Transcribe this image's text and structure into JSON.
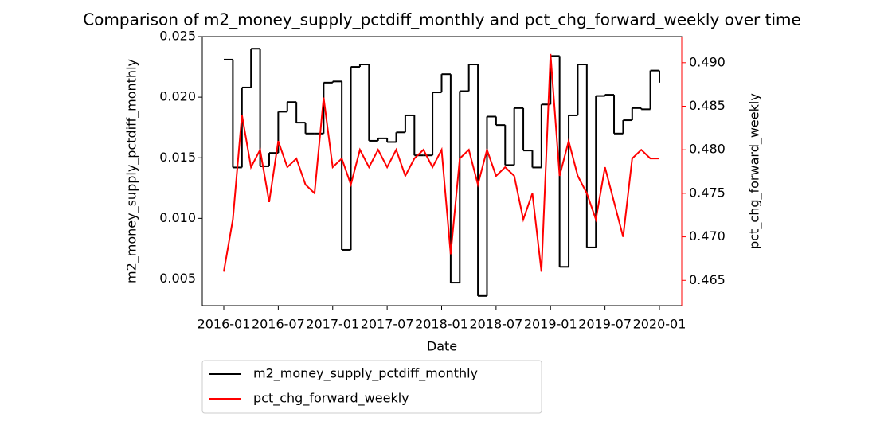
{
  "chart_data": {
    "type": "line",
    "title": "Comparison of m2_money_supply_pctdiff_monthly and pct_chg_forward_weekly over time",
    "x_label": "Date",
    "y_label": "m2_money_supply_pctdiff_monthly",
    "y2_label": "pct_chg_forward_weekly",
    "x": [
      "2016-01",
      "2016-02",
      "2016-03",
      "2016-04",
      "2016-05",
      "2016-06",
      "2016-07",
      "2016-08",
      "2016-09",
      "2016-10",
      "2016-11",
      "2016-12",
      "2017-01",
      "2017-02",
      "2017-03",
      "2017-04",
      "2017-05",
      "2017-06",
      "2017-07",
      "2017-08",
      "2017-09",
      "2017-10",
      "2017-11",
      "2017-12",
      "2018-01",
      "2018-02",
      "2018-03",
      "2018-04",
      "2018-05",
      "2018-06",
      "2018-07",
      "2018-08",
      "2018-09",
      "2018-10",
      "2018-11",
      "2018-12",
      "2019-01",
      "2019-02",
      "2019-03",
      "2019-04",
      "2019-05",
      "2019-06",
      "2019-07",
      "2019-08",
      "2019-09",
      "2019-10",
      "2019-11",
      "2019-12",
      "2020-01"
    ],
    "xticks": [
      "2016-01",
      "2016-07",
      "2017-01",
      "2017-07",
      "2018-01",
      "2018-07",
      "2019-01",
      "2019-07",
      "2020-01"
    ],
    "series": [
      {
        "name": "m2_money_supply_pctdiff_monthly",
        "color": "#000000",
        "step": true,
        "values": [
          0.0231,
          0.0142,
          0.0208,
          0.024,
          0.0143,
          0.0154,
          0.0188,
          0.0196,
          0.0179,
          0.017,
          0.017,
          0.0212,
          0.0213,
          0.0074,
          0.0225,
          0.0227,
          0.0164,
          0.0166,
          0.0163,
          0.0171,
          0.0185,
          0.0152,
          0.0152,
          0.0204,
          0.0219,
          0.0047,
          0.0205,
          0.0227,
          0.0036,
          0.0184,
          0.0177,
          0.0144,
          0.0191,
          0.0156,
          0.0142,
          0.0194,
          0.0234,
          0.006,
          0.0185,
          0.0227,
          0.0076,
          0.0201,
          0.0202,
          0.017,
          0.0181,
          0.0191,
          0.019,
          0.0222,
          0.0212
        ]
      },
      {
        "name": "pct_chg_forward_weekly",
        "color": "#ff0000",
        "axis": "y2",
        "values": [
          0.466,
          0.472,
          0.484,
          0.478,
          0.48,
          0.474,
          0.481,
          0.478,
          0.479,
          0.476,
          0.475,
          0.486,
          0.478,
          0.479,
          0.476,
          0.48,
          0.478,
          0.48,
          0.478,
          0.48,
          0.477,
          0.479,
          0.48,
          0.478,
          0.48,
          0.468,
          0.479,
          0.48,
          0.476,
          0.48,
          0.477,
          0.478,
          0.477,
          0.472,
          0.475,
          0.466,
          0.491,
          0.477,
          0.481,
          0.477,
          0.475,
          0.472,
          0.478,
          0.474,
          0.47,
          0.479,
          0.48,
          0.479,
          0.479
        ]
      }
    ],
    "ylim": [
      0.0028,
      0.025
    ],
    "yticks": [
      0.005,
      {
        "value": 0.01,
        "label": "0.010"
      },
      0.015,
      {
        "value": 0.02,
        "label": "0.020"
      },
      0.025
    ],
    "y2lim": [
      0.4621,
      0.493
    ],
    "y2ticks": [
      0.465,
      {
        "value": 0.47,
        "label": "0.470"
      },
      0.475,
      {
        "value": 0.48,
        "label": "0.480"
      },
      0.485,
      {
        "value": 0.49,
        "label": "0.490"
      }
    ],
    "y2_color": "#ff0000",
    "legend": "lower left"
  }
}
